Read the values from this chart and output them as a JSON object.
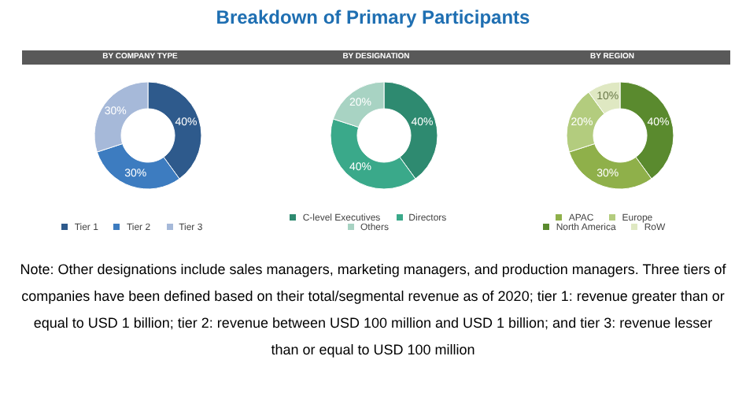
{
  "chart_data": [
    {
      "type": "other",
      "title": "Breakdown of Primary Participants"
    },
    {
      "type": "donut",
      "title": "BY COMPANY TYPE",
      "categories": [
        "Tier 1",
        "Tier 2",
        "Tier 3"
      ],
      "values": [
        40,
        30,
        30
      ],
      "value_labels": [
        "40%",
        "30%",
        "30%"
      ],
      "colors": [
        "#2e5a8c",
        "#3d7cc0",
        "#a6b9d9"
      ],
      "legend": "bottom"
    },
    {
      "type": "donut",
      "title": "BY DESIGNATION",
      "categories": [
        "C-level Executives",
        "Directors",
        "Others"
      ],
      "values": [
        40,
        40,
        20
      ],
      "value_labels": [
        "40%",
        "40%",
        "20%"
      ],
      "colors": [
        "#2e8a70",
        "#3aa98a",
        "#a8d3c3"
      ],
      "legend": "bottom"
    },
    {
      "type": "donut",
      "title": "BY REGION",
      "categories": [
        "North America",
        "APAC",
        "Europe",
        "RoW"
      ],
      "values": [
        40,
        30,
        20,
        10
      ],
      "value_labels": [
        "40%",
        "30%",
        "20%",
        "10%"
      ],
      "colors": [
        "#5a8a2e",
        "#8fb04a",
        "#b3cc7e",
        "#dfe8c2"
      ],
      "legend": "bottom"
    },
    {
      "type": "other",
      "annotations": [
        "Note: Other designations include sales managers, marketing managers, and production managers. Three tiers of companies have been defined based on their total/segmental revenue as of 2020; tier 1: revenue greater than or equal to USD 1 billion; tier 2: revenue between USD 100 million and USD 1 billion; and tier 3: revenue lesser than or equal to USD 100 million"
      ]
    }
  ]
}
